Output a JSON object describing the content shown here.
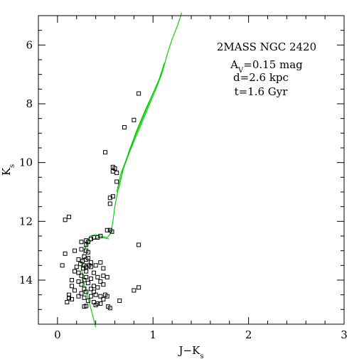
{
  "chart_data": {
    "type": "scatter",
    "title": "",
    "xlabel": "J−K",
    "xlabel_sub": "s",
    "ylabel": "K",
    "ylabel_sub": "s",
    "xlim": [
      -0.2,
      3.0
    ],
    "ylim": [
      15.5,
      5.0
    ],
    "y_inverted": true,
    "x_ticks": [
      0,
      1,
      2,
      3
    ],
    "y_ticks": [
      6,
      8,
      10,
      12,
      14
    ],
    "annotations": {
      "line1": "2MASS NGC 2420",
      "line2_prefix": "A",
      "line2_sub": "V",
      "line2_suffix": "=0.15 mag",
      "line3": "d=2.6 kpc",
      "line4": "t=1.6 Gyr"
    },
    "marker": "open-square",
    "colors": {
      "points": "#000000",
      "isochrone": "#00cc00",
      "axes": "#000000"
    },
    "points": [
      [
        0.85,
        7.65
      ],
      [
        0.8,
        8.55
      ],
      [
        0.7,
        8.8
      ],
      [
        0.5,
        9.65
      ],
      [
        0.58,
        10.15
      ],
      [
        0.6,
        10.2
      ],
      [
        0.58,
        10.3
      ],
      [
        0.62,
        10.35
      ],
      [
        0.62,
        10.65
      ],
      [
        0.58,
        11.15
      ],
      [
        0.55,
        11.2
      ],
      [
        0.55,
        11.4
      ],
      [
        0.08,
        11.95
      ],
      [
        0.12,
        11.85
      ],
      [
        0.52,
        12.3
      ],
      [
        0.55,
        12.3
      ],
      [
        0.57,
        12.35
      ],
      [
        0.45,
        12.5
      ],
      [
        0.38,
        12.55
      ],
      [
        0.35,
        12.6
      ],
      [
        0.3,
        12.65
      ],
      [
        0.32,
        12.7
      ],
      [
        0.42,
        12.55
      ],
      [
        0.25,
        12.7
      ],
      [
        0.3,
        12.8
      ],
      [
        0.85,
        12.8
      ],
      [
        0.25,
        12.95
      ],
      [
        0.3,
        13.0
      ],
      [
        0.32,
        13.05
      ],
      [
        0.18,
        13.0
      ],
      [
        0.08,
        13.1
      ],
      [
        0.28,
        13.2
      ],
      [
        0.22,
        13.3
      ],
      [
        0.26,
        13.35
      ],
      [
        0.3,
        13.3
      ],
      [
        0.35,
        13.4
      ],
      [
        0.32,
        13.25
      ],
      [
        0.24,
        13.45
      ],
      [
        0.28,
        13.5
      ],
      [
        0.33,
        13.5
      ],
      [
        0.3,
        13.55
      ],
      [
        0.27,
        13.6
      ],
      [
        0.35,
        13.55
      ],
      [
        0.05,
        13.5
      ],
      [
        0.2,
        13.55
      ],
      [
        0.45,
        13.4
      ],
      [
        0.4,
        13.5
      ],
      [
        0.48,
        13.6
      ],
      [
        0.18,
        13.7
      ],
      [
        0.22,
        13.75
      ],
      [
        0.3,
        13.7
      ],
      [
        0.38,
        13.75
      ],
      [
        0.48,
        13.85
      ],
      [
        0.25,
        13.85
      ],
      [
        0.3,
        13.9
      ],
      [
        0.35,
        13.95
      ],
      [
        0.42,
        13.9
      ],
      [
        0.52,
        13.9
      ],
      [
        0.15,
        14.0
      ],
      [
        0.22,
        14.05
      ],
      [
        0.28,
        14.0
      ],
      [
        0.32,
        14.1
      ],
      [
        0.25,
        14.15
      ],
      [
        0.45,
        14.05
      ],
      [
        0.38,
        14.2
      ],
      [
        0.42,
        14.25
      ],
      [
        0.28,
        14.3
      ],
      [
        0.35,
        14.3
      ],
      [
        0.3,
        14.4
      ],
      [
        0.48,
        14.15
      ],
      [
        0.15,
        14.2
      ],
      [
        0.18,
        14.35
      ],
      [
        0.12,
        14.5
      ],
      [
        0.25,
        14.45
      ],
      [
        0.38,
        14.4
      ],
      [
        0.4,
        14.5
      ],
      [
        0.45,
        14.55
      ],
      [
        0.5,
        14.5
      ],
      [
        0.35,
        14.55
      ],
      [
        0.28,
        14.6
      ],
      [
        0.12,
        14.6
      ],
      [
        0.15,
        14.65
      ],
      [
        0.22,
        14.55
      ],
      [
        0.32,
        14.7
      ],
      [
        0.38,
        14.75
      ],
      [
        0.42,
        14.8
      ],
      [
        0.48,
        14.65
      ],
      [
        0.52,
        14.55
      ],
      [
        0.65,
        14.7
      ],
      [
        0.28,
        14.9
      ],
      [
        0.3,
        14.88
      ],
      [
        0.4,
        14.85
      ],
      [
        0.45,
        14.8
      ],
      [
        0.53,
        14.9
      ],
      [
        0.55,
        14.95
      ],
      [
        0.8,
        14.35
      ],
      [
        0.85,
        14.25
      ],
      [
        0.1,
        14.75
      ]
    ]
  }
}
